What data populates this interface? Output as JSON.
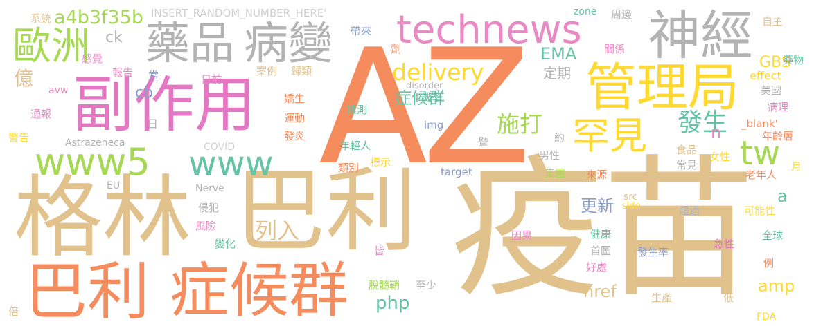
{
  "words": [
    {
      "text": "疫苗",
      "color": "#e2c28c"
    },
    {
      "text": "AZ",
      "color": "#f58c5e"
    },
    {
      "text": "格林",
      "color": "#e2c28c"
    },
    {
      "text": "巴利",
      "color": "#e2c28c"
    },
    {
      "text": "巴利",
      "color": "#f58c5e"
    },
    {
      "text": "症候群",
      "color": "#f58c5e"
    },
    {
      "text": "副作用",
      "color": "#e377c2"
    },
    {
      "text": "管理局",
      "color": "#ffd92f"
    },
    {
      "text": "神經",
      "color": "#b3b3b3"
    },
    {
      "text": "藥品",
      "color": "#b3b3b3"
    },
    {
      "text": "病變",
      "color": "#b3b3b3"
    },
    {
      "text": "technews",
      "color": "#e78ac3"
    },
    {
      "text": "歐洲",
      "color": "#a6d854"
    },
    {
      "text": "www5",
      "color": "#a6d854"
    },
    {
      "text": "www",
      "color": "#66c2a5"
    },
    {
      "text": "罕見",
      "color": "#ffd92f"
    },
    {
      "text": "tw",
      "color": "#a6d854"
    },
    {
      "text": "a4b3f35b",
      "color": "#a6d854"
    },
    {
      "text": "delivery",
      "color": "#ffd92f"
    },
    {
      "text": "施打",
      "color": "#a6d854"
    },
    {
      "text": "發生",
      "color": "#66c2a5"
    },
    {
      "text": "php",
      "color": "#66c2a5"
    },
    {
      "text": "列入",
      "color": "#e2c28c"
    },
    {
      "text": "更新",
      "color": "#8da0cb"
    },
    {
      "text": "href",
      "color": "#e2c28c"
    },
    {
      "text": "amp",
      "color": "#ffd92f"
    },
    {
      "text": "EMA",
      "color": "#66c2a5"
    },
    {
      "text": "GBS",
      "color": "#ffd92f"
    },
    {
      "text": "症候群",
      "color": "#66c2a5"
    },
    {
      "text": "億",
      "color": "#e2c28c"
    },
    {
      "text": "ck",
      "color": "#b3b3b3"
    },
    {
      "text": "cb",
      "color": "#8da0cb"
    },
    {
      "text": "定期",
      "color": "#b3b3b3"
    },
    {
      "text": "n",
      "color": "#e78ac3"
    },
    {
      "text": "a",
      "color": "#66c2a5"
    },
    {
      "text": "系統",
      "color": "#e2c28c"
    },
    {
      "text": "INSERT_RANDOM_NUMBER_HERE'",
      "color": "#d0d0d0"
    },
    {
      "text": "帶來",
      "color": "#8da0cb"
    },
    {
      "text": "zone",
      "color": "#66c2a5"
    },
    {
      "text": "周邊",
      "color": "#b3b3b3"
    },
    {
      "text": "自主",
      "color": "#e2c28c"
    },
    {
      "text": "藥物",
      "color": "#66c2a5"
    },
    {
      "text": "關係",
      "color": "#e78ac3"
    },
    {
      "text": "effect",
      "color": "#ffd92f"
    },
    {
      "text": "美國",
      "color": "#b3b3b3"
    },
    {
      "text": "病理",
      "color": "#e78ac3"
    },
    {
      "text": "_blank'",
      "color": "#f58c5e"
    },
    {
      "text": "年齡層",
      "color": "#f58c5e"
    },
    {
      "text": "女性",
      "color": "#ffd92f"
    },
    {
      "text": "月",
      "color": "#ffd92f"
    },
    {
      "text": "老年人",
      "color": "#f58c5e"
    },
    {
      "text": "食品",
      "color": "#e2c28c"
    },
    {
      "text": "常見",
      "color": "#b3b3b3"
    },
    {
      "text": "可能性",
      "color": "#ffd92f"
    },
    {
      "text": "全球",
      "color": "#66c2a5"
    },
    {
      "text": "例",
      "color": "#f58c5e"
    },
    {
      "text": "FDA",
      "color": "#ffd92f"
    },
    {
      "text": "低",
      "color": "#e2c28c"
    },
    {
      "text": "急性",
      "color": "#e377c2"
    },
    {
      "text": "發生率",
      "color": "#8da0cb"
    },
    {
      "text": "生產",
      "color": "#e2c28c"
    },
    {
      "text": "超過",
      "color": "#b3b3b3"
    },
    {
      "text": "src",
      "color": "#e2c28c"
    },
    {
      "text": "來源",
      "color": "#f58c5e"
    },
    {
      "text": "集團",
      "color": "#a6d854"
    },
    {
      "text": "男性",
      "color": "#b3b3b3"
    },
    {
      "text": "約",
      "color": "#b3b3b3"
    },
    {
      "text": "暨",
      "color": "#b3b3b3"
    },
    {
      "text": "target",
      "color": "#8da0cb"
    },
    {
      "text": "side",
      "color": "#ffd92f"
    },
    {
      "text": "因果",
      "color": "#e78ac3"
    },
    {
      "text": "健康",
      "color": "#66c2a5"
    },
    {
      "text": "首圖",
      "color": "#b3b3b3"
    },
    {
      "text": "好處",
      "color": "#e78ac3"
    },
    {
      "text": "皆",
      "color": "#e78ac3"
    },
    {
      "text": "至少",
      "color": "#b3b3b3"
    },
    {
      "text": "脫髓鞘",
      "color": "#a6d854"
    },
    {
      "text": "年輕人",
      "color": "#66c2a5"
    },
    {
      "text": "類別",
      "color": "#f58c5e"
    },
    {
      "text": "標示",
      "color": "#ffd92f"
    },
    {
      "text": "img",
      "color": "#8da0cb"
    },
    {
      "text": "機率",
      "color": "#66c2a5"
    },
    {
      "text": "推測",
      "color": "#66c2a5"
    },
    {
      "text": "嬌生",
      "color": "#f58c5e"
    },
    {
      "text": "運動",
      "color": "#f58c5e"
    },
    {
      "text": "發炎",
      "color": "#f58c5e"
    },
    {
      "text": "劑",
      "color": "#f58c5e"
    },
    {
      "text": "歸類",
      "color": "#e2c28c"
    },
    {
      "text": "案例",
      "color": "#e2c28c"
    },
    {
      "text": "disorder",
      "color": "#b3b3b3"
    },
    {
      "text": "日前",
      "color": "#e78ac3"
    },
    {
      "text": "常",
      "color": "#8da0cb"
    },
    {
      "text": "報告",
      "color": "#e78ac3"
    },
    {
      "text": "感覺",
      "color": "#e78ac3"
    },
    {
      "text": "avw",
      "color": "#e78ac3"
    },
    {
      "text": "通報",
      "color": "#e78ac3"
    },
    {
      "text": "日",
      "color": "#b3b3b3"
    },
    {
      "text": "警告",
      "color": "#ffd92f"
    },
    {
      "text": "Astrazeneca",
      "color": "#b3b3b3"
    },
    {
      "text": "COVID",
      "color": "#d0d0d0"
    },
    {
      "text": "EU",
      "color": "#b3b3b3"
    },
    {
      "text": "Nerve",
      "color": "#b3b3b3"
    },
    {
      "text": "侵犯",
      "color": "#b3b3b3"
    },
    {
      "text": "風險",
      "color": "#e78ac3"
    },
    {
      "text": "變化",
      "color": "#66c2a5"
    },
    {
      "text": "倍",
      "color": "#e2c28c"
    }
  ]
}
